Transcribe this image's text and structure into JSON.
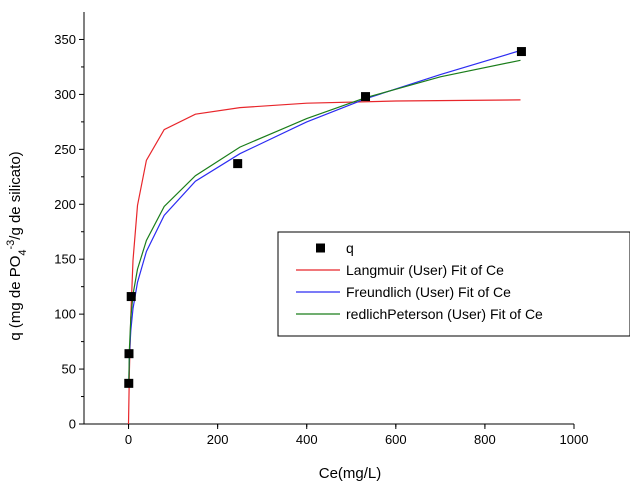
{
  "chart_data": {
    "type": "scatter",
    "title": "",
    "xlabel": "Ce(mg/L)",
    "ylabel": {
      "prefix": "q (mg de PO",
      "sub": "4",
      "sup": "-3",
      "suffix": "/g de silicato)"
    },
    "xlim": [
      -100,
      1000
    ],
    "ylim": [
      0,
      375
    ],
    "xticks": [
      0,
      200,
      400,
      600,
      800,
      1000
    ],
    "yticks": [
      0,
      50,
      100,
      150,
      200,
      250,
      300,
      350
    ],
    "grid": false,
    "legend_position": "right",
    "series": [
      {
        "name": "q",
        "kind": "points",
        "marker": "square",
        "color": "#000000",
        "x": [
          0.5,
          1,
          6,
          245,
          532,
          882
        ],
        "y": [
          37,
          64,
          116,
          237,
          298,
          339
        ]
      },
      {
        "name": "Langmuir (User) Fit of Ce",
        "kind": "line",
        "color": "#e8262b",
        "x": [
          0,
          2,
          5,
          10,
          20,
          40,
          80,
          150,
          250,
          400,
          600,
          880
        ],
        "y": [
          0,
          48,
          98,
          149,
          199,
          240,
          268,
          282,
          288,
          292,
          294,
          295
        ]
      },
      {
        "name": "Freundlich (User) Fit of Ce",
        "kind": "line",
        "color": "#2c2cf2",
        "x": [
          0.5,
          2,
          5,
          10,
          20,
          40,
          80,
          150,
          250,
          400,
          532,
          700,
          880
        ],
        "y": [
          37,
          62,
          85,
          105,
          129,
          157,
          190,
          221,
          246,
          275,
          296,
          318,
          340
        ]
      },
      {
        "name": "redlichPeterson (User) Fit of Ce",
        "kind": "line",
        "color": "#1a7d1a",
        "x": [
          0.5,
          2,
          5,
          10,
          20,
          40,
          80,
          150,
          250,
          400,
          532,
          700,
          880
        ],
        "y": [
          37,
          68,
          96,
          118,
          141,
          167,
          198,
          226,
          252,
          278,
          297,
          316,
          331
        ]
      }
    ]
  }
}
